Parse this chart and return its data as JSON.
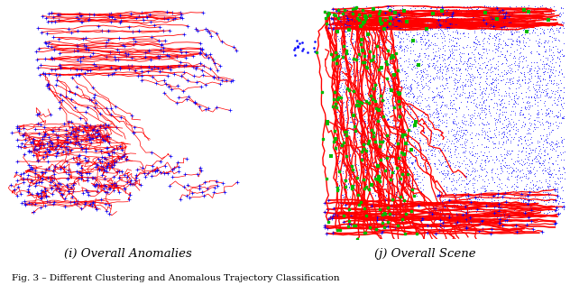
{
  "left_label": "(i) Overall Anomalies",
  "right_label": "(j) Overall Scene",
  "background_color": "#ffffff",
  "red_color": "#ff0000",
  "blue_color": "#0000ff",
  "green_color": "#00bb00",
  "label_fontsize": 9.5,
  "seed": 42
}
